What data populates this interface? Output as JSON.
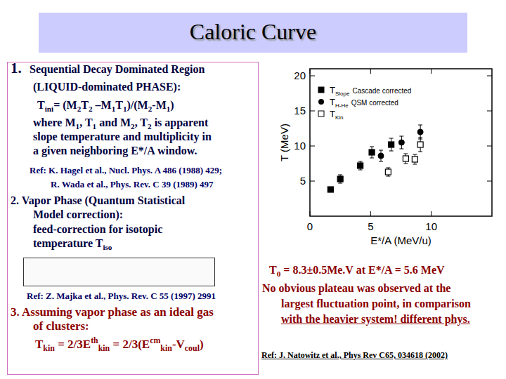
{
  "title": "Caloric Curve",
  "left_panel": {
    "lines": [
      [
        "1."
      ],
      [
        "Sequential Decay Dominated Region"
      ],
      [
        "(LIQUID-dominated PHASE):"
      ],
      [
        "T",
        {
          "sub": "ini"
        },
        "= (M",
        {
          "sub": "2"
        },
        "T",
        {
          "sub": "2"
        },
        " –M",
        {
          "sub": "1"
        },
        "T",
        {
          "sub": "1"
        },
        ")/(M",
        {
          "sub": "2"
        },
        "-M",
        {
          "sub": "1"
        },
        ")"
      ],
      [
        "where M",
        {
          "sub": "1"
        },
        ", T",
        {
          "sub": "1"
        },
        " and M",
        {
          "sub": "2"
        },
        ", T",
        {
          "sub": "2"
        },
        " is apparent"
      ],
      [
        "slope temperature and multiplicity in"
      ],
      [
        "a given neighboring  E*/A window."
      ],
      [
        "Ref: K. Hagel et al., Nucl. Phys. A 486 (1988) 429;"
      ],
      [
        "R. Wada et al., Phys. Rev. C 39 (1989) 497"
      ],
      [
        "2. Vapor Phase (Quantum Statistical"
      ],
      [
        "Model correction):"
      ],
      [
        "feed-correction for isotopic"
      ],
      [
        "temperature T",
        {
          "sub": "iso"
        }
      ],
      [
        "Ref: Z. Majka et al., Phys. Rev. C 55 (1997) 2991"
      ],
      [
        "3. Assuming vapor phase as an ideal gas"
      ],
      [
        "of clusters:"
      ],
      [
        "T",
        {
          "sub": "kin"
        },
        " = 2/3E",
        {
          "sup": "th"
        },
        {
          "sub": "kin"
        },
        " = 2/3(E",
        {
          "sup": "cm"
        },
        {
          "sub": "kin"
        },
        "-V",
        {
          "sub": "coul"
        },
        ")"
      ]
    ]
  },
  "right_panel": {
    "lines": [
      [
        "T",
        {
          "sub": "0"
        },
        " = 8.3±0.5Me.V at E*/A = 5.6 MeV"
      ],
      [
        "No obvious plateau was observed at the"
      ],
      [
        "largest fluctuation point, in comparison"
      ],
      [
        "with the heavier system! different phys."
      ],
      [
        "Ref: J. Natowitz et al., Phys Rev C65, 034618 (2002)"
      ]
    ]
  },
  "chart_data": {
    "type": "scatter",
    "x_label": "E*/A (MeV/u)",
    "y_label": "T (MeV)",
    "xlim": [
      0,
      15
    ],
    "ylim": [
      0,
      21
    ],
    "xticks": [
      0,
      5,
      10
    ],
    "yticks": [
      5,
      10,
      15,
      20
    ],
    "legend": "upper left",
    "legend_notes": [
      "Cascade corrected",
      "QSM corrected",
      null
    ],
    "series": [
      {
        "name": "TSlope",
        "color": "#000000",
        "marker": "square",
        "x": [
          1.7,
          2.5,
          4.15,
          5.1,
          6.7
        ],
        "values": [
          3.8,
          5.3,
          7.2,
          9.1,
          10.2
        ],
        "errors": [
          0.3,
          0.6,
          0.6,
          0.8,
          0.9
        ]
      },
      {
        "name": "TH-He",
        "color": "#000000",
        "marker": "circle",
        "x": [
          5.85,
          7.55,
          9.1
        ],
        "values": [
          8.6,
          10.5,
          12.0
        ],
        "errors": [
          0.8,
          0.9,
          1.0
        ]
      },
      {
        "name": "TKin",
        "color": "#000000",
        "marker": "square-open",
        "x": [
          6.45,
          7.9,
          8.65,
          9.1
        ],
        "values": [
          6.3,
          8.2,
          8.1,
          10.2
        ],
        "errors": [
          0.6,
          0.7,
          0.7,
          1.0
        ]
      }
    ]
  }
}
